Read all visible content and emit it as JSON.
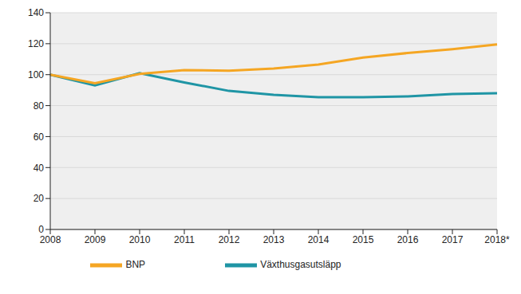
{
  "chart_data": {
    "type": "line",
    "categories": [
      "2008",
      "2009",
      "2010",
      "2011",
      "2012",
      "2013",
      "2014",
      "2015",
      "2016",
      "2017",
      "2018*"
    ],
    "series": [
      {
        "name": "Växthusgasutsläpp",
        "color": "#1f95a5",
        "values": [
          100,
          93,
          101,
          95,
          89.5,
          87,
          85.5,
          85.5,
          86,
          87.5,
          88
        ]
      },
      {
        "name": "BNP",
        "color": "#f5a623",
        "values": [
          100,
          94.5,
          100.5,
          103,
          102.5,
          104,
          106.5,
          111,
          114,
          116.5,
          119.5
        ]
      }
    ],
    "ylim": [
      0,
      140
    ],
    "yticks": [
      0,
      20,
      40,
      60,
      80,
      100,
      120,
      140
    ],
    "grid": true,
    "legend": "bottom"
  }
}
